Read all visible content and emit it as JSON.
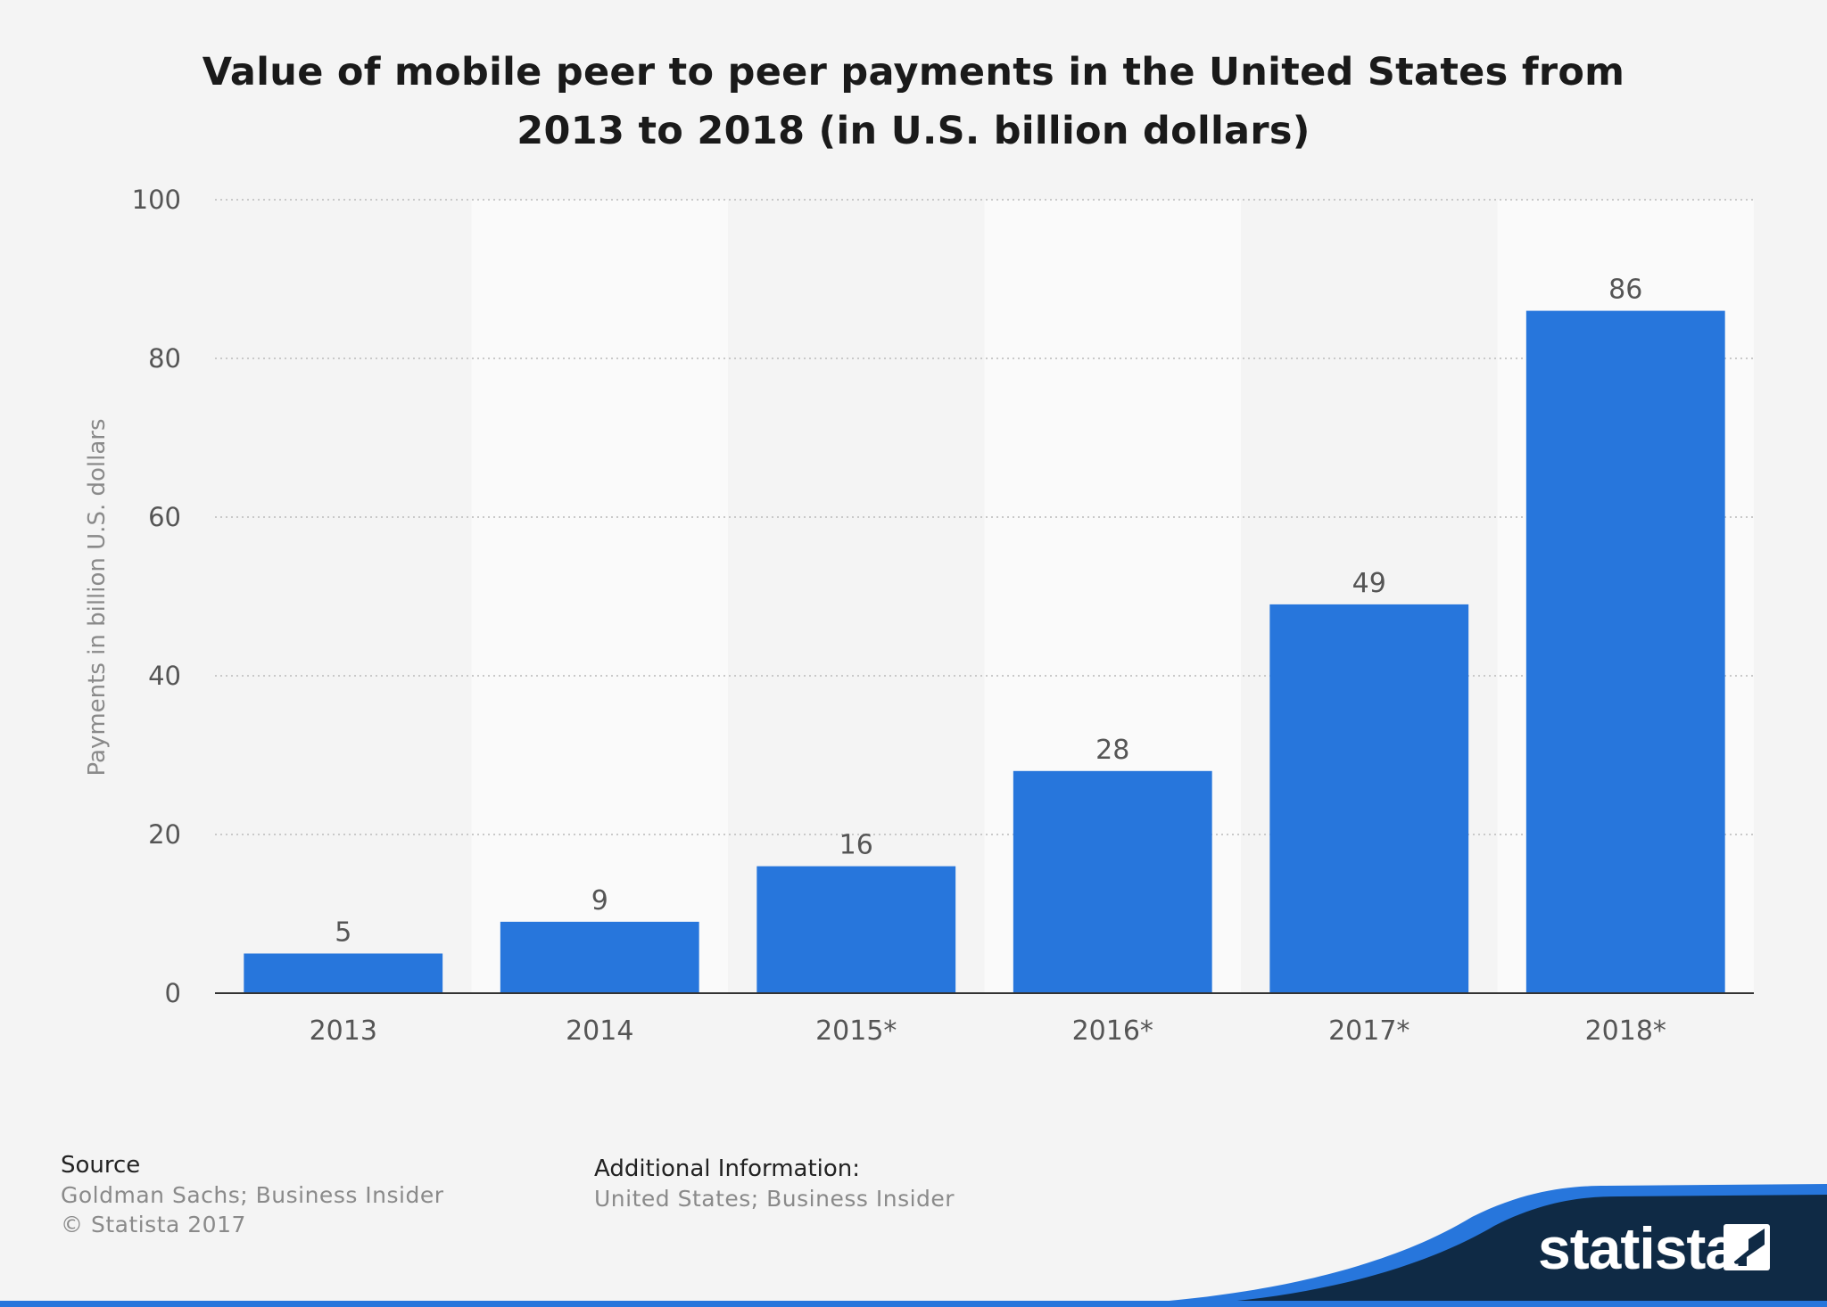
{
  "colors": {
    "background": "#f4f4f4",
    "bar": "#2776dc",
    "band": "#fafafa",
    "grid": "#c9c9c9",
    "axis": "#333333",
    "brand_dark": "#0f2a45",
    "brand_blue": "#2776dc"
  },
  "chart_data": {
    "type": "bar",
    "title_lines": [
      "Value of mobile peer to peer payments in the United States from",
      "2013 to 2018 (in U.S. billion dollars)"
    ],
    "categories": [
      "2013",
      "2014",
      "2015*",
      "2016*",
      "2017*",
      "2018*"
    ],
    "values": [
      5,
      9,
      16,
      28,
      49,
      86
    ],
    "data_labels": [
      "5",
      "9",
      "16",
      "28",
      "49",
      "86"
    ],
    "ylabel": "Payments in billion U.S. dollars",
    "xlabel": "",
    "ylim": [
      0,
      100
    ],
    "yticks": [
      0,
      20,
      40,
      60,
      80,
      100
    ],
    "grid": true,
    "legend": "none"
  },
  "footer": {
    "source_heading": "Source",
    "source_lines": [
      "Goldman Sachs; Business Insider",
      "© Statista 2017"
    ],
    "additional_heading": "Additional Information:",
    "additional_lines": [
      "United States; Business Insider"
    ]
  },
  "brand": {
    "logo_text": "statista",
    "logo_icon": "statista-mark-icon"
  }
}
